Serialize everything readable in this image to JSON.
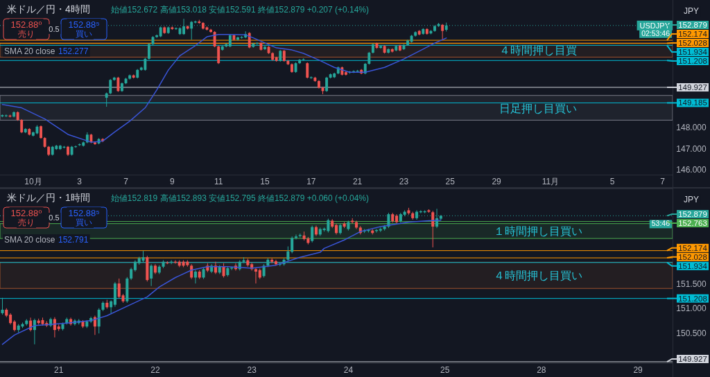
{
  "chart_data": [
    {
      "type": "candlestick",
      "title": "米ドル／円・4時間",
      "subtitle": "始値152.672 高値153.018 安値152.591 終値152.879 +0.207 (+0.14%)",
      "categories": [
        null,
        null,
        null,
        null,
        null,
        null,
        null,
        null,
        "10月",
        null,
        null,
        null,
        null,
        null,
        null,
        null,
        null,
        null,
        null,
        null,
        "3",
        null,
        null,
        null,
        null,
        null,
        null,
        null,
        null,
        null,
        null,
        null,
        "7",
        null,
        null,
        null,
        null,
        null,
        null,
        null,
        null,
        null,
        null,
        null,
        "9",
        null,
        null,
        null,
        null,
        null,
        null,
        null,
        null,
        null,
        null,
        null,
        "11",
        null,
        null,
        null,
        null,
        null,
        null,
        null,
        null,
        null,
        null,
        null,
        "15",
        null,
        null,
        null,
        null,
        null,
        null,
        null,
        null,
        null,
        null,
        null,
        "17",
        null,
        null,
        null,
        null,
        null,
        null,
        null,
        null,
        null,
        null,
        null,
        "21",
        null,
        null,
        null,
        null,
        null,
        null,
        null,
        null,
        null,
        null,
        null,
        "23",
        null,
        null,
        null,
        null,
        null,
        null,
        null,
        null,
        null,
        null,
        null,
        "25",
        null,
        null,
        null,
        null,
        null,
        null,
        null,
        null,
        null,
        null,
        null,
        "29",
        null,
        null,
        null,
        null,
        null,
        null,
        null,
        null,
        null,
        null,
        null,
        null,
        null,
        "11月",
        null,
        null,
        null,
        null,
        null,
        null,
        null,
        null,
        null,
        null,
        null,
        null,
        null,
        null,
        null,
        "5",
        null,
        null,
        null,
        null,
        null,
        null,
        null,
        null,
        null,
        null,
        null,
        null,
        "7",
        null,
        null
      ],
      "ohlc": [
        [
          148.54,
          148.63,
          148.5,
          148.6
        ],
        [
          148.55,
          148.63,
          148.51,
          148.59
        ],
        [
          148.58,
          148.62,
          148.49,
          148.53
        ],
        [
          148.53,
          148.78,
          148.49,
          148.74
        ],
        [
          148.74,
          148.78,
          148.33,
          148.37
        ],
        [
          148.37,
          148.41,
          147.74,
          147.78
        ],
        [
          147.78,
          147.98,
          147.74,
          147.94
        ],
        [
          147.94,
          147.98,
          147.63,
          147.67
        ],
        [
          147.62,
          147.82,
          147.58,
          147.78
        ],
        [
          147.73,
          148.12,
          147.69,
          148.05
        ],
        [
          148.07,
          148.11,
          147.47,
          147.51
        ],
        [
          147.51,
          147.55,
          147.05,
          147.09
        ],
        [
          147.09,
          147.13,
          146.65,
          146.71
        ],
        [
          146.71,
          147.13,
          146.67,
          147.09
        ],
        [
          146.98,
          147.18,
          146.94,
          147.14
        ],
        [
          146.98,
          147.18,
          146.94,
          147.14
        ],
        [
          147.05,
          147.13,
          147.01,
          147.09
        ],
        [
          147.09,
          147.13,
          146.65,
          146.71
        ],
        [
          146.71,
          147.13,
          146.67,
          147.09
        ],
        [
          147.08,
          147.15,
          147.04,
          147.11
        ],
        [
          147.17,
          147.25,
          147.13,
          147.21
        ],
        [
          147.14,
          147.34,
          147.1,
          147.3
        ],
        [
          147.3,
          147.78,
          147.26,
          147.67
        ],
        [
          147.67,
          147.71,
          147.26,
          147.3
        ],
        [
          147.3,
          147.34,
          147.18,
          147.22
        ],
        [
          147.25,
          147.5,
          147.21,
          147.46
        ],
        [
          147.46,
          147.5,
          147.31,
          147.35
        ],
        [
          149.43,
          149.68,
          149.0,
          149.64
        ],
        [
          149.64,
          150.32,
          149.6,
          150.28
        ],
        [
          150.28,
          150.43,
          150.24,
          150.39
        ],
        [
          150.39,
          150.43,
          149.71,
          149.75
        ],
        [
          149.75,
          150.16,
          149.71,
          150.12
        ],
        [
          150.12,
          150.38,
          150.08,
          150.34
        ],
        [
          150.34,
          150.54,
          150.3,
          150.5
        ],
        [
          150.5,
          150.54,
          150.35,
          150.39
        ],
        [
          150.39,
          150.8,
          150.35,
          150.76
        ],
        [
          150.76,
          150.91,
          150.72,
          150.87
        ],
        [
          150.76,
          151.33,
          150.72,
          151.29
        ],
        [
          151.29,
          152.03,
          151.25,
          151.99
        ],
        [
          151.99,
          152.37,
          151.95,
          152.33
        ],
        [
          152.33,
          152.45,
          152.29,
          152.41
        ],
        [
          152.36,
          152.83,
          152.32,
          152.79
        ],
        [
          152.79,
          152.83,
          152.48,
          152.52
        ],
        [
          152.52,
          152.83,
          152.48,
          152.79
        ],
        [
          152.79,
          152.83,
          152.67,
          152.71
        ],
        [
          152.71,
          152.79,
          152.67,
          152.75
        ],
        [
          152.47,
          152.79,
          152.43,
          152.75
        ],
        [
          152.47,
          153.2,
          152.43,
          152.84
        ],
        [
          152.84,
          152.88,
          152.69,
          152.73
        ],
        [
          152.73,
          153.09,
          152.2,
          153.05
        ],
        [
          153.02,
          153.11,
          152.98,
          153.07
        ],
        [
          153.07,
          153.15,
          152.96,
          153.0
        ],
        [
          153.0,
          153.04,
          152.69,
          152.73
        ],
        [
          152.79,
          152.83,
          152.64,
          152.68
        ],
        [
          152.68,
          152.72,
          152.53,
          152.57
        ],
        [
          152.57,
          152.61,
          151.84,
          151.88
        ],
        [
          151.88,
          151.92,
          151.04,
          151.08
        ],
        [
          151.72,
          151.92,
          151.68,
          151.88
        ],
        [
          151.88,
          152.03,
          151.84,
          151.99
        ],
        [
          151.88,
          152.45,
          151.84,
          152.41
        ],
        [
          152.41,
          152.45,
          152.16,
          152.2
        ],
        [
          152.2,
          152.35,
          152.16,
          152.31
        ],
        [
          152.29,
          152.37,
          152.25,
          152.33
        ],
        [
          152.31,
          152.6,
          152.27,
          152.47
        ],
        [
          152.52,
          152.56,
          151.79,
          151.83
        ],
        [
          151.86,
          152.05,
          151.82,
          152.01
        ],
        [
          152.01,
          152.08,
          151.97,
          152.04
        ],
        [
          152.04,
          152.08,
          151.68,
          151.72
        ],
        [
          151.75,
          151.9,
          151.71,
          151.86
        ],
        [
          151.86,
          151.9,
          151.52,
          151.56
        ],
        [
          151.56,
          151.6,
          151.2,
          151.24
        ],
        [
          151.35,
          151.39,
          151.15,
          151.19
        ],
        [
          151.19,
          151.71,
          151.15,
          151.67
        ],
        [
          151.67,
          151.71,
          151.15,
          151.19
        ],
        [
          151.19,
          151.23,
          150.99,
          151.03
        ],
        [
          151.03,
          151.07,
          150.62,
          150.66
        ],
        [
          150.66,
          151.12,
          150.62,
          151.08
        ],
        [
          151.08,
          151.28,
          151.04,
          151.24
        ],
        [
          151.24,
          151.31,
          151.2,
          151.27
        ],
        [
          151.08,
          151.12,
          150.35,
          150.39
        ],
        [
          150.37,
          150.45,
          150.33,
          150.41
        ],
        [
          150.39,
          150.43,
          150.19,
          150.23
        ],
        [
          150.23,
          150.27,
          149.87,
          149.91
        ],
        [
          149.91,
          149.95,
          149.6,
          149.75
        ],
        [
          149.75,
          150.43,
          149.71,
          150.39
        ],
        [
          150.39,
          150.59,
          150.35,
          150.55
        ],
        [
          150.41,
          150.63,
          150.37,
          150.59
        ],
        [
          150.59,
          150.92,
          150.55,
          150.88
        ],
        [
          150.88,
          150.92,
          150.49,
          150.53
        ],
        [
          150.65,
          150.69,
          150.49,
          150.53
        ],
        [
          150.62,
          150.71,
          150.58,
          150.67
        ],
        [
          150.65,
          150.74,
          150.61,
          150.7
        ],
        [
          150.68,
          150.76,
          150.64,
          150.72
        ],
        [
          150.76,
          150.8,
          150.55,
          150.59
        ],
        [
          150.59,
          151.09,
          150.55,
          151.05
        ],
        [
          151.05,
          151.62,
          151.01,
          151.58
        ],
        [
          151.58,
          152.02,
          151.54,
          151.98
        ],
        [
          152.02,
          152.06,
          151.77,
          151.81
        ],
        [
          151.81,
          151.94,
          151.77,
          151.9
        ],
        [
          151.9,
          151.94,
          151.54,
          151.58
        ],
        [
          151.58,
          151.79,
          151.54,
          151.75
        ],
        [
          151.75,
          151.79,
          151.59,
          151.63
        ],
        [
          151.69,
          151.94,
          151.65,
          151.9
        ],
        [
          151.92,
          151.96,
          151.65,
          151.69
        ],
        [
          151.75,
          151.99,
          151.71,
          151.95
        ],
        [
          151.95,
          152.2,
          151.91,
          152.16
        ],
        [
          152.1,
          152.43,
          152.06,
          152.39
        ],
        [
          152.39,
          152.6,
          152.35,
          152.56
        ],
        [
          152.62,
          152.66,
          152.41,
          152.45
        ],
        [
          152.48,
          152.75,
          152.44,
          152.71
        ],
        [
          152.71,
          152.75,
          152.44,
          152.48
        ],
        [
          152.5,
          152.66,
          152.46,
          152.62
        ],
        [
          152.62,
          152.89,
          152.58,
          152.85
        ],
        [
          152.85,
          153.0,
          152.81,
          152.95
        ],
        [
          152.91,
          152.95,
          152.21,
          152.62
        ],
        [
          152.672,
          153.018,
          152.591,
          152.879
        ],
        null,
        null,
        null,
        null,
        null,
        null,
        null,
        null,
        null,
        null,
        null,
        null,
        null,
        null,
        null,
        null,
        null,
        null,
        null,
        null,
        null,
        null,
        null,
        null,
        null,
        null,
        null,
        null,
        null,
        null,
        null,
        null,
        null,
        null,
        null,
        null,
        null,
        null,
        null,
        null,
        null,
        null,
        null,
        null,
        null,
        null,
        null,
        null,
        null,
        null,
        null,
        null,
        null,
        null,
        null,
        null,
        null,
        null
      ],
      "series": [
        {
          "type": "line",
          "color": "#3a55d8",
          "values": [
            149.11,
            null,
            null,
            null,
            null,
            148.95,
            null,
            null,
            null,
            null,
            null,
            148.42,
            null,
            null,
            null,
            null,
            null,
            147.68,
            null,
            null,
            null,
            null,
            null,
            147.31,
            null,
            null,
            147.36,
            null,
            null,
            147.78,
            null,
            null,
            null,
            148.31,
            null,
            null,
            null,
            148.95,
            null,
            null,
            149.8,
            null,
            null,
            150.75,
            null,
            null,
            151.44,
            null,
            null,
            null,
            151.92,
            null,
            null,
            152.34,
            null,
            null,
            152.45,
            null,
            null,
            152.45,
            null,
            null,
            null,
            152.43,
            null,
            152.29,
            null,
            null,
            null,
            null,
            null,
            151.81,
            null,
            null,
            null,
            151.71,
            null,
            null,
            151.55,
            null,
            null,
            null,
            151.23,
            null,
            null,
            null,
            150.88,
            null,
            null,
            null,
            150.65,
            null,
            null,
            null,
            150.65,
            null,
            null,
            null,
            null,
            150.88,
            null,
            null,
            null,
            null,
            151.28,
            null,
            null,
            null,
            null,
            151.75,
            null,
            null,
            152.04,
            null,
            null,
            152.28,
            null,
            null,
            null,
            null,
            null,
            null,
            null,
            null,
            null,
            null,
            null,
            null,
            null,
            null,
            null,
            null,
            null,
            null,
            null,
            null,
            null,
            null,
            null,
            null,
            null,
            null,
            null,
            null,
            null,
            null,
            null,
            null,
            null,
            null,
            null,
            null,
            null,
            null,
            null,
            null,
            null,
            null,
            null,
            null,
            null,
            null,
            null,
            null,
            null,
            null,
            null,
            null,
            null,
            null,
            null,
            null,
            null,
            null
          ]
        }
      ],
      "ylim": [
        145.76,
        153.93
      ],
      "legend": "right",
      "yticks": [
        {
          "value": 146,
          "label": "146.000"
        },
        {
          "value": 147,
          "label": "147.000"
        },
        {
          "value": 148,
          "label": "148.000"
        }
      ],
      "ref_lines": [
        {
          "axis": "y",
          "value": 152.879,
          "label": "152.879",
          "color": "#26a69a",
          "line_style": "dotted"
        },
        {
          "axis": "y",
          "value": 152.174,
          "label": "152.174",
          "color": "#ff9800"
        },
        {
          "axis": "y",
          "value": 152.028,
          "label": "152.028",
          "color": "#ff9800"
        },
        {
          "axis": "y",
          "value": 151.934,
          "label": "151.934",
          "color": "#00bcd4"
        },
        {
          "axis": "y",
          "value": 151.208,
          "label": "151.208",
          "color": "#00bcd4"
        },
        {
          "axis": "y",
          "value": 149.927,
          "label": "149.927",
          "color": "#d1d4dc"
        },
        {
          "axis": "y",
          "value": 149.185,
          "label": "149.185",
          "color": "#00bcd4"
        }
      ],
      "bands": [
        {
          "axis": "y",
          "from": 151.37,
          "to": 152.04,
          "label": "４時間押し目買",
          "color": "#a0522d"
        },
        {
          "axis": "y",
          "from": 148.36,
          "to": 149.54,
          "label": "日足押し目買い",
          "color": "#787b86"
        }
      ],
      "annotations": [
        "152.88⁰",
        "売り",
        "0.5",
        "152.88⁵",
        "買い",
        "SMA 20 close",
        "152.277",
        "JPY",
        "02:53:46",
        {
          "text": "USDJPY",
          "y": 152.879
        }
      ]
    },
    {
      "type": "candlestick",
      "title": "米ドル／円・1時間",
      "subtitle": "始値152.819 高値152.893 安値152.795 終値152.879 +0.060 (+0.04%)",
      "categories": [
        null,
        null,
        null,
        null,
        null,
        null,
        null,
        null,
        null,
        null,
        null,
        null,
        null,
        null,
        "21",
        null,
        null,
        null,
        null,
        null,
        null,
        null,
        null,
        null,
        null,
        null,
        null,
        null,
        null,
        null,
        null,
        null,
        null,
        null,
        null,
        null,
        null,
        null,
        "22",
        null,
        null,
        null,
        null,
        null,
        null,
        null,
        null,
        null,
        null,
        null,
        null,
        null,
        null,
        null,
        null,
        null,
        null,
        null,
        null,
        null,
        null,
        null,
        "23",
        null,
        null,
        null,
        null,
        null,
        null,
        null,
        null,
        null,
        null,
        null,
        null,
        null,
        null,
        null,
        null,
        null,
        null,
        null,
        null,
        null,
        null,
        null,
        "24",
        null,
        null,
        null,
        null,
        null,
        null,
        null,
        null,
        null,
        null,
        null,
        null,
        null,
        null,
        null,
        null,
        null,
        null,
        null,
        null,
        null,
        null,
        null,
        "25",
        null,
        null,
        null,
        null,
        null,
        null,
        null,
        null,
        null,
        null,
        null,
        null,
        null,
        null,
        null,
        null,
        null,
        null,
        null,
        null,
        null,
        null,
        null,
        "28",
        null,
        null,
        null,
        null,
        null,
        null,
        null,
        null,
        null,
        null,
        null,
        null,
        null,
        null,
        null,
        null,
        null,
        null,
        null,
        null,
        null,
        null,
        null,
        "29",
        null,
        null,
        null,
        null,
        null,
        null,
        null,
        null
      ],
      "ohlc": [
        [
          150.91,
          151.22,
          150.88,
          150.98
        ],
        [
          150.98,
          151.01,
          150.83,
          150.86
        ],
        [
          150.88,
          150.91,
          150.68,
          150.71
        ],
        [
          150.74,
          150.77,
          150.54,
          150.57
        ],
        [
          150.57,
          150.69,
          150.52,
          150.66
        ],
        [
          150.64,
          150.72,
          150.61,
          150.69
        ],
        [
          150.69,
          150.79,
          150.66,
          150.76
        ],
        [
          150.76,
          150.82,
          150.54,
          150.57
        ],
        [
          150.57,
          150.8,
          150.28,
          150.77
        ],
        [
          150.76,
          150.8,
          150.68,
          150.71
        ],
        [
          150.77,
          150.82,
          150.66,
          150.69
        ],
        [
          150.71,
          150.75,
          150.63,
          150.66
        ],
        [
          150.66,
          150.82,
          150.63,
          150.79
        ],
        [
          150.79,
          150.83,
          150.42,
          150.57
        ],
        [
          150.64,
          150.68,
          150.55,
          150.59
        ],
        [
          150.59,
          150.72,
          150.56,
          150.69
        ],
        [
          150.71,
          150.82,
          150.68,
          150.79
        ],
        [
          150.79,
          150.82,
          150.66,
          150.69
        ],
        [
          150.69,
          150.79,
          150.66,
          150.76
        ],
        [
          150.71,
          150.79,
          150.68,
          150.76
        ],
        [
          150.74,
          150.77,
          150.61,
          150.64
        ],
        [
          150.64,
          150.77,
          150.61,
          150.74
        ],
        [
          150.74,
          150.84,
          150.71,
          150.81
        ],
        [
          150.83,
          150.86,
          150.47,
          150.64
        ],
        [
          150.64,
          151.01,
          150.5,
          150.98
        ],
        [
          150.98,
          151.15,
          150.95,
          151.12
        ],
        [
          151.12,
          151.18,
          151.0,
          151.03
        ],
        [
          151.03,
          151.17,
          150.91,
          151.15
        ],
        [
          151.08,
          151.54,
          151.04,
          151.51
        ],
        [
          151.51,
          151.61,
          151.21,
          151.24
        ],
        [
          151.27,
          151.3,
          151.12,
          151.15
        ],
        [
          151.15,
          151.64,
          151.12,
          151.61
        ],
        [
          151.61,
          151.83,
          151.58,
          151.8
        ],
        [
          151.78,
          151.98,
          151.75,
          151.95
        ],
        [
          151.92,
          152.05,
          151.89,
          152.02
        ],
        [
          151.97,
          152.17,
          151.94,
          152.04
        ],
        [
          152.04,
          152.07,
          151.55,
          151.58
        ],
        [
          151.61,
          151.9,
          151.46,
          151.87
        ],
        [
          151.87,
          151.9,
          151.7,
          151.73
        ],
        [
          151.73,
          151.88,
          151.7,
          151.85
        ],
        [
          151.85,
          151.98,
          151.82,
          151.95
        ],
        [
          151.93,
          151.96,
          151.9,
          151.92
        ],
        [
          151.93,
          151.98,
          151.9,
          151.95
        ],
        [
          151.95,
          151.98,
          151.91,
          151.93
        ],
        [
          151.95,
          151.98,
          151.84,
          151.87
        ],
        [
          151.95,
          151.98,
          151.84,
          151.87
        ],
        [
          151.95,
          151.98,
          151.85,
          151.88
        ],
        [
          151.87,
          151.9,
          151.6,
          151.63
        ],
        [
          151.63,
          151.78,
          151.51,
          151.75
        ],
        [
          151.75,
          151.78,
          151.6,
          151.63
        ],
        [
          151.63,
          151.83,
          151.6,
          151.8
        ],
        [
          151.87,
          151.92,
          151.74,
          151.77
        ],
        [
          151.75,
          151.9,
          151.72,
          151.87
        ],
        [
          151.87,
          151.95,
          151.7,
          151.73
        ],
        [
          151.73,
          151.88,
          151.7,
          151.85
        ],
        [
          151.85,
          151.92,
          151.63,
          151.66
        ],
        [
          151.68,
          151.85,
          151.65,
          151.82
        ],
        [
          151.81,
          151.85,
          151.78,
          151.83
        ],
        [
          151.87,
          151.92,
          151.77,
          151.8
        ],
        [
          151.8,
          151.98,
          151.77,
          151.95
        ],
        [
          151.95,
          152.04,
          151.92,
          151.98
        ],
        [
          151.98,
          152.01,
          151.85,
          151.88
        ],
        [
          151.9,
          151.93,
          151.77,
          151.8
        ],
        [
          151.8,
          151.83,
          151.51,
          151.75
        ],
        [
          151.78,
          151.81,
          151.6,
          151.63
        ],
        [
          151.66,
          151.9,
          151.63,
          151.87
        ],
        [
          151.87,
          152.02,
          151.84,
          151.99
        ],
        [
          151.99,
          152.02,
          151.92,
          151.95
        ],
        [
          151.96,
          151.99,
          151.87,
          151.9
        ],
        [
          151.89,
          151.93,
          151.86,
          151.91
        ],
        [
          151.9,
          152.02,
          151.87,
          151.99
        ],
        [
          151.99,
          152.26,
          151.96,
          152.16
        ],
        [
          152.15,
          152.46,
          152.12,
          152.43
        ],
        [
          152.43,
          152.5,
          152.4,
          152.46
        ],
        [
          152.47,
          152.52,
          152.44,
          152.49
        ],
        [
          152.48,
          152.56,
          152.38,
          152.41
        ],
        [
          152.42,
          152.45,
          152.3,
          152.33
        ],
        [
          152.37,
          152.68,
          152.34,
          152.65
        ],
        [
          152.65,
          152.68,
          152.47,
          152.5
        ],
        [
          152.5,
          152.64,
          152.47,
          152.61
        ],
        [
          152.59,
          152.64,
          152.56,
          152.62
        ],
        [
          152.57,
          152.82,
          152.54,
          152.79
        ],
        [
          152.78,
          152.81,
          152.63,
          152.66
        ],
        [
          152.69,
          152.72,
          152.5,
          152.53
        ],
        [
          152.53,
          152.72,
          152.5,
          152.69
        ],
        [
          152.72,
          152.75,
          152.63,
          152.66
        ],
        [
          152.61,
          152.78,
          152.58,
          152.75
        ],
        [
          152.78,
          152.83,
          152.72,
          152.75
        ],
        [
          152.75,
          152.78,
          152.61,
          152.64
        ],
        [
          152.64,
          152.67,
          152.5,
          152.53
        ],
        [
          152.56,
          152.61,
          152.53,
          152.58
        ],
        [
          152.57,
          152.61,
          152.54,
          152.59
        ],
        [
          152.58,
          152.61,
          152.5,
          152.53
        ],
        [
          152.57,
          152.61,
          152.54,
          152.59
        ],
        [
          152.58,
          152.64,
          152.55,
          152.61
        ],
        [
          152.61,
          152.69,
          152.58,
          152.66
        ],
        [
          152.66,
          152.94,
          152.63,
          152.91
        ],
        [
          152.91,
          152.94,
          152.74,
          152.77
        ],
        [
          152.88,
          152.91,
          152.72,
          152.75
        ],
        [
          152.77,
          152.94,
          152.74,
          152.91
        ],
        [
          152.9,
          152.99,
          152.87,
          152.96
        ],
        [
          152.99,
          153.04,
          152.9,
          152.93
        ],
        [
          152.93,
          152.96,
          152.8,
          152.83
        ],
        [
          152.83,
          152.99,
          152.8,
          152.96
        ],
        [
          152.95,
          152.99,
          152.93,
          152.97
        ],
        [
          152.95,
          152.99,
          152.93,
          152.97
        ],
        [
          152.99,
          153.01,
          152.94,
          152.96
        ],
        [
          152.95,
          152.98,
          152.24,
          152.66
        ],
        [
          152.66,
          153.02,
          152.63,
          152.83
        ],
        [
          152.819,
          152.893,
          152.795,
          152.879
        ],
        null,
        null,
        null,
        null,
        null,
        null,
        null,
        null,
        null,
        null,
        null,
        null,
        null,
        null,
        null,
        null,
        null,
        null,
        null,
        null,
        null,
        null,
        null,
        null,
        null,
        null,
        null,
        null,
        null,
        null,
        null,
        null,
        null,
        null,
        null,
        null,
        null,
        null,
        null,
        null,
        null,
        null,
        null,
        null,
        null,
        null,
        null,
        null,
        null,
        null,
        null,
        null,
        null,
        null,
        null,
        null,
        null
      ],
      "series": [
        {
          "type": "line",
          "color": "#3a55d8",
          "values": [
            150.28,
            null,
            null,
            150.47,
            null,
            null,
            null,
            null,
            150.66,
            null,
            150.67,
            null,
            null,
            null,
            null,
            null,
            150.71,
            null,
            null,
            null,
            null,
            null,
            150.76,
            null,
            null,
            null,
            150.86,
            null,
            null,
            null,
            null,
            151.05,
            null,
            null,
            null,
            null,
            151.24,
            null,
            null,
            151.44,
            null,
            null,
            null,
            151.63,
            null,
            null,
            null,
            151.78,
            null,
            null,
            null,
            151.85,
            null,
            null,
            null,
            null,
            151.85,
            null,
            null,
            null,
            null,
            null,
            151.82,
            null,
            null,
            null,
            null,
            null,
            151.88,
            null,
            null,
            null,
            null,
            null,
            152.04,
            null,
            null,
            null,
            null,
            152.14,
            152.22,
            null,
            null,
            null,
            null,
            152.39,
            null,
            null,
            null,
            152.56,
            null,
            null,
            null,
            null,
            152.66,
            null,
            null,
            null,
            null,
            null,
            null,
            152.75,
            null,
            null,
            null,
            null,
            152.78,
            null,
            null,
            152.79,
            null,
            null,
            null,
            null,
            null,
            null,
            null,
            null,
            null,
            null,
            null,
            null,
            null,
            null,
            null,
            null,
            null,
            null,
            null,
            null,
            null,
            null,
            null,
            null,
            null,
            null,
            null,
            null,
            null,
            null,
            null,
            null,
            null,
            null,
            null,
            null,
            null,
            null,
            null,
            null,
            null,
            null,
            null,
            null,
            null,
            null,
            null,
            null,
            null,
            null,
            null,
            null,
            null,
            null,
            null,
            null,
            null
          ]
        }
      ],
      "ylim": [
        149.9,
        153.36
      ],
      "legend": "right",
      "yticks": [
        {
          "value": 150.5,
          "label": "150.500"
        },
        {
          "value": 151,
          "label": "151.000"
        },
        {
          "value": 151.5,
          "label": "151.500"
        }
      ],
      "ref_lines": [
        {
          "axis": "y",
          "value": 152.879,
          "label": "152.879",
          "color": "#26a69a",
          "line_style": "dotted"
        },
        {
          "axis": "y",
          "value": 152.763,
          "label": "152.763",
          "color": "#4caf50"
        },
        {
          "axis": "y",
          "value": 152.174,
          "label": "152.174",
          "color": "#ff9800"
        },
        {
          "axis": "y",
          "value": 152.028,
          "label": "152.028",
          "color": "#ff9800"
        },
        {
          "axis": "y",
          "value": 151.934,
          "label": "151.934",
          "color": "#00bcd4"
        },
        {
          "axis": "y",
          "value": 151.208,
          "label": "151.208",
          "color": "#00bcd4"
        },
        {
          "axis": "y",
          "value": 149.927,
          "label": "149.927",
          "color": "#d1d4dc"
        }
      ],
      "bands": [
        {
          "axis": "y",
          "from": 152.42,
          "to": 152.72,
          "label": "１時間押し目買い",
          "color": "#4caf50"
        },
        {
          "axis": "y",
          "from": 151.41,
          "to": 151.94,
          "label": "４時間押し目買い",
          "color": "#a0522d"
        }
      ],
      "annotations": [
        "152.88⁰",
        "売り",
        "0.5",
        "152.88⁵",
        "買い",
        "SMA 20 close",
        "152.791",
        "JPY",
        "53:46"
      ]
    }
  ]
}
